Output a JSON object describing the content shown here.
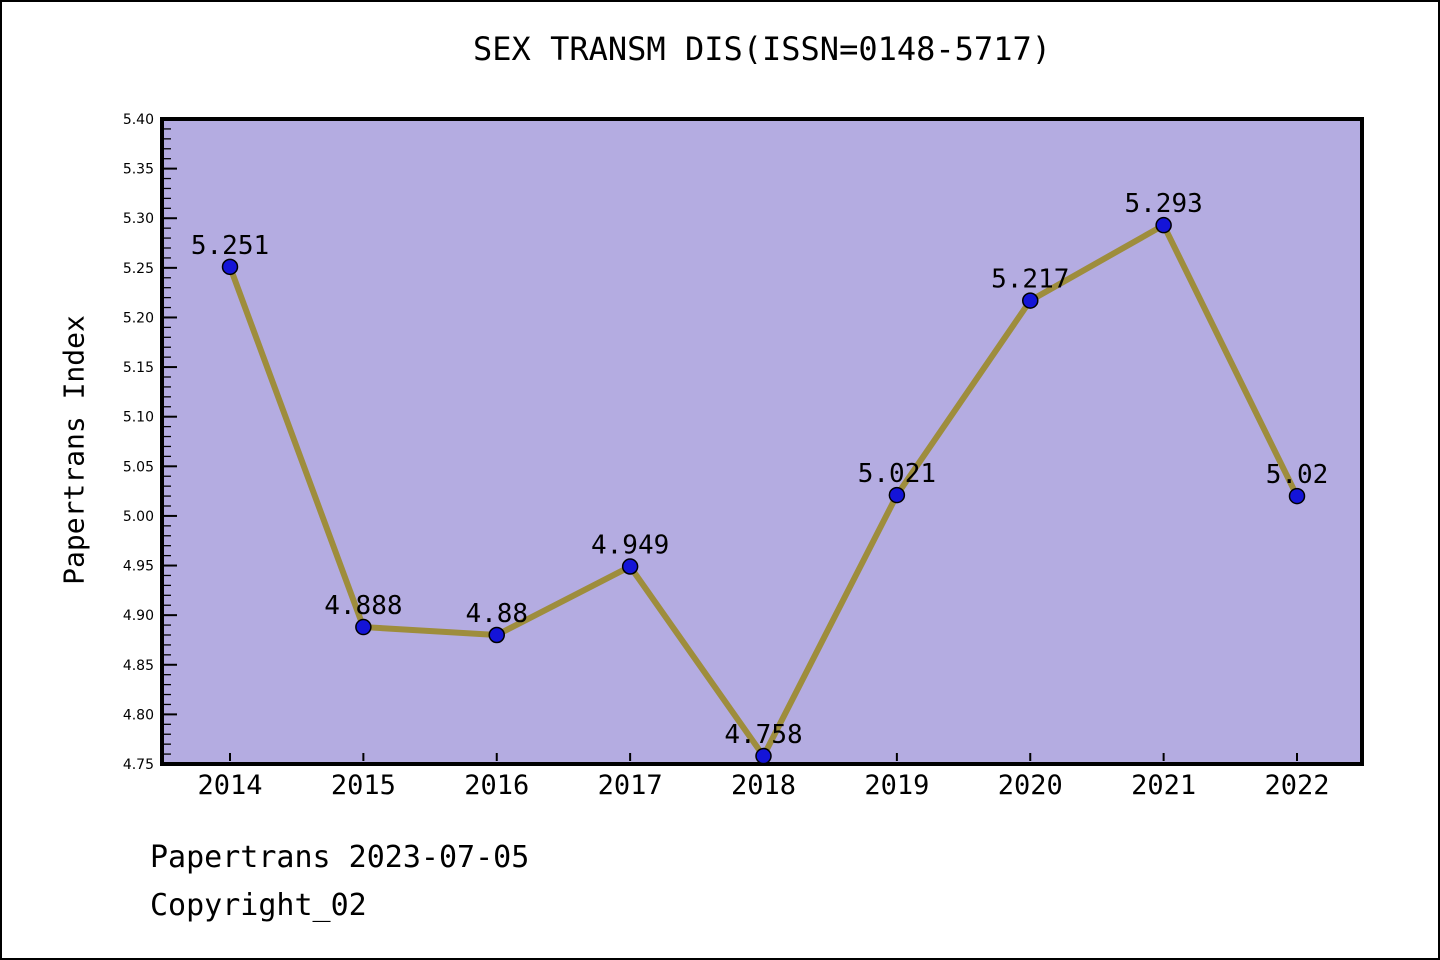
{
  "header": {
    "title": "SEX TRANSM DIS(ISSN=0148-5717)"
  },
  "footer": {
    "line1": "Papertrans 2023-07-05",
    "line2": "Copyright_02"
  },
  "colors": {
    "plot_background": "#b4ace1",
    "line": "#9e8d3c",
    "marker_fill": "#1414d8",
    "marker_edge": "#000000",
    "axis": "#000000",
    "text": "#000000",
    "page_background": "#ffffff"
  },
  "chart_data": {
    "type": "line",
    "title": "SEX TRANSM DIS(ISSN=0148-5717)",
    "xlabel": "",
    "ylabel": "Papertrans Index",
    "x": [
      2014,
      2015,
      2016,
      2017,
      2018,
      2019,
      2020,
      2021,
      2022
    ],
    "values": [
      5.251,
      4.888,
      4.88,
      4.949,
      4.758,
      5.021,
      5.217,
      5.293,
      5.02
    ],
    "point_labels": [
      "5.251",
      "4.888",
      "4.88",
      "4.949",
      "4.758",
      "5.021",
      "5.217",
      "5.293",
      "5.02"
    ],
    "ylim": [
      4.75,
      5.4
    ],
    "ytick_step": 0.05,
    "ytick_minor_step": 0.01,
    "ytick_decimals": 2,
    "grid": false,
    "legend": null,
    "marker": "circle"
  }
}
